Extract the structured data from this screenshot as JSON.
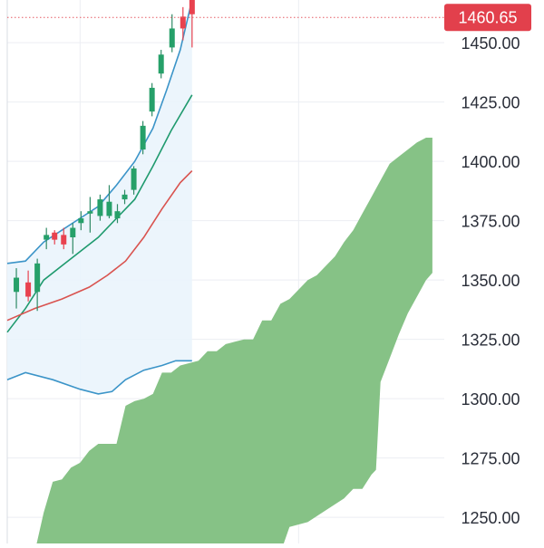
{
  "colors": {
    "background": "#ffffff",
    "grid": "#eceef3",
    "left_border": "#d9dce3",
    "up_candle": "#26a069",
    "down_candle": "#e8424f",
    "wick": "#2f8a66",
    "cloud_fill": "#86c286",
    "bollinger": "#3b94c8",
    "bollinger_fill": "#eaf4fc",
    "green_line": "#1f9a6e",
    "red_line": "#d9534f",
    "axis_text": "#2a2e39",
    "price_tag_bg": "#e2404c",
    "price_tag_text": "#ffffff",
    "price_line": "#e55a63"
  },
  "chart_data": {
    "type": "candlestick",
    "y_axis": {
      "position": "right",
      "ticks": [
        "1450.00",
        "1425.00",
        "1400.00",
        "1375.00",
        "1350.00",
        "1325.00",
        "1300.00",
        "1275.00",
        "1250.00"
      ],
      "tick_values": [
        1450,
        1425,
        1400,
        1375,
        1350,
        1325,
        1300,
        1275,
        1250
      ],
      "range": [
        1239,
        1468
      ]
    },
    "last_price": {
      "label": "1460.65",
      "value": 1460.65
    },
    "x_range": [
      0,
      48
    ],
    "grid": true,
    "candles": [
      {
        "x": 1,
        "open": 1345,
        "close": 1351,
        "high": 1355,
        "low": 1338
      },
      {
        "x": 2.3,
        "open": 1349,
        "close": 1343,
        "high": 1354,
        "low": 1341
      },
      {
        "x": 3.3,
        "open": 1345,
        "close": 1357,
        "high": 1359,
        "low": 1337
      },
      {
        "x": 4.3,
        "open": 1367,
        "close": 1369,
        "high": 1372,
        "low": 1363
      },
      {
        "x": 5.2,
        "open": 1370,
        "close": 1367,
        "high": 1371,
        "low": 1365
      },
      {
        "x": 6.2,
        "open": 1369,
        "close": 1365,
        "high": 1372,
        "low": 1363
      },
      {
        "x": 7.2,
        "open": 1368,
        "close": 1372,
        "high": 1374,
        "low": 1361
      },
      {
        "x": 8.1,
        "open": 1374,
        "close": 1376,
        "high": 1379,
        "low": 1371
      },
      {
        "x": 9.1,
        "open": 1378,
        "close": 1379,
        "high": 1385,
        "low": 1370
      },
      {
        "x": 10.2,
        "open": 1377,
        "close": 1384,
        "high": 1386,
        "low": 1375
      },
      {
        "x": 11.2,
        "open": 1377,
        "close": 1383,
        "high": 1390,
        "low": 1376
      },
      {
        "x": 12.1,
        "open": 1376,
        "close": 1379,
        "high": 1382,
        "low": 1374
      },
      {
        "x": 12.9,
        "open": 1384,
        "close": 1386,
        "high": 1388,
        "low": 1382
      },
      {
        "x": 13.9,
        "open": 1388,
        "close": 1397,
        "high": 1398,
        "low": 1386
      },
      {
        "x": 14.9,
        "open": 1405,
        "close": 1415,
        "high": 1417,
        "low": 1403
      },
      {
        "x": 15.9,
        "open": 1421,
        "close": 1431,
        "high": 1433,
        "low": 1419
      },
      {
        "x": 16.9,
        "open": 1437,
        "close": 1445,
        "high": 1447,
        "low": 1435
      },
      {
        "x": 18.1,
        "open": 1448,
        "close": 1456,
        "high": 1462,
        "low": 1446
      },
      {
        "x": 19.3,
        "open": 1461,
        "close": 1456,
        "high": 1465,
        "low": 1451
      },
      {
        "x": 20.3,
        "open": 1468,
        "close": 1462,
        "high": 1468,
        "low": 1448
      }
    ],
    "bollinger_upper": {
      "x": [
        0,
        2,
        4,
        6,
        8,
        10,
        12,
        14,
        16,
        17.5,
        19,
        20.3
      ],
      "y": [
        1357,
        1358,
        1366,
        1371,
        1376,
        1381,
        1390,
        1400,
        1414,
        1430,
        1447,
        1468
      ]
    },
    "bollinger_lower": {
      "x": [
        0,
        2,
        5,
        8,
        10,
        11.5,
        13,
        15,
        17,
        18.5,
        20.3
      ],
      "y": [
        1308,
        1311,
        1308,
        1304,
        1302,
        1303,
        1308,
        1312,
        1314,
        1316,
        1316
      ]
    },
    "green_line": {
      "x": [
        0,
        2,
        4,
        6,
        8,
        10,
        12,
        14,
        16,
        18,
        20.3
      ],
      "y": [
        1328,
        1338,
        1350,
        1356,
        1362,
        1368,
        1376,
        1384,
        1398,
        1413,
        1428
      ]
    },
    "red_line": {
      "x": [
        0,
        3,
        6,
        9,
        11,
        13,
        15,
        17,
        19,
        20.3
      ],
      "y": [
        1333,
        1338,
        1342,
        1347,
        1352,
        1358,
        1368,
        1380,
        1391,
        1396
      ]
    },
    "cloud": {
      "upper": {
        "x": [
          3,
          4,
          5,
          6,
          7,
          8,
          9,
          10,
          11,
          12,
          13,
          14,
          15,
          16,
          17,
          18,
          19,
          20,
          21,
          22,
          23,
          24,
          25,
          26,
          27,
          28,
          29,
          30,
          31,
          32,
          33,
          34,
          35,
          36,
          37,
          38,
          39,
          40,
          41,
          42,
          43,
          44,
          45,
          46,
          46.7
        ],
        "y": [
          1235,
          1252,
          1265,
          1266,
          1271,
          1273,
          1278,
          1281,
          1281,
          1281,
          1297,
          1299,
          1300,
          1302,
          1311,
          1311,
          1314,
          1315,
          1316,
          1320,
          1320,
          1323,
          1324,
          1325,
          1325,
          1333,
          1333,
          1340,
          1342,
          1346,
          1350,
          1352,
          1356,
          1360,
          1366,
          1371,
          1378,
          1385,
          1392,
          1399,
          1402,
          1405,
          1408,
          1410,
          1410
        ]
      },
      "lower": {
        "x": [
          3,
          6,
          10,
          14,
          18,
          22,
          26,
          30,
          31,
          33,
          35,
          37,
          38,
          39,
          40,
          40.5,
          41,
          42,
          43,
          44,
          45,
          46,
          46.7
        ],
        "y": [
          1235,
          1235,
          1235,
          1235,
          1235,
          1235,
          1235,
          1235,
          1246,
          1248,
          1253,
          1258,
          1262,
          1262,
          1268,
          1270,
          1307,
          1317,
          1327,
          1336,
          1343,
          1350,
          1353
        ]
      }
    }
  }
}
